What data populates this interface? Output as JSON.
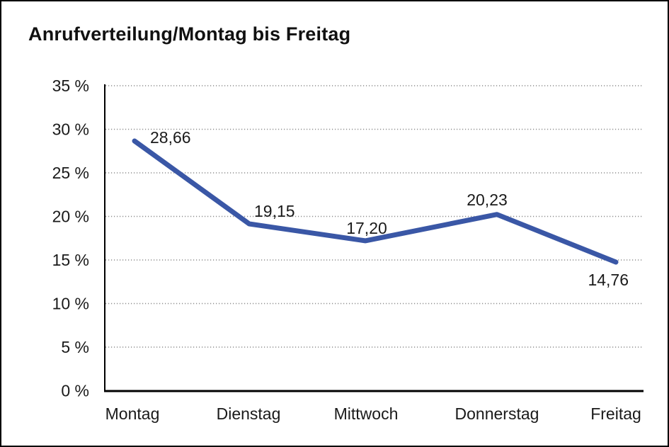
{
  "header": {
    "title": "Anrufverteilung/Montag bis Freitag"
  },
  "chart_data": {
    "type": "line",
    "title": "Anrufverteilung/Montag bis Freitag",
    "categories": [
      "Montag",
      "Dienstag",
      "Mittwoch",
      "Donnerstag",
      "Freitag"
    ],
    "values": [
      28.66,
      19.15,
      17.2,
      20.23,
      14.76
    ],
    "value_labels": [
      "28,66",
      "19,15",
      "17,20",
      "20,23",
      "14,76"
    ],
    "ytick_labels": [
      "35 %",
      "30 %",
      "25 %",
      "20 %",
      "15 %",
      "10 %",
      "5 %",
      "0 %"
    ],
    "yticks": [
      35,
      30,
      25,
      20,
      15,
      10,
      5,
      0
    ],
    "ylim": [
      0,
      35
    ],
    "xlabel": "",
    "ylabel": "",
    "legend": "none",
    "grid": "horizontal-dotted",
    "line_color": "#3A57A6",
    "grid_color": "#8c8c8c",
    "axis_color": "#000000",
    "text_color": "#1a1a1a"
  }
}
